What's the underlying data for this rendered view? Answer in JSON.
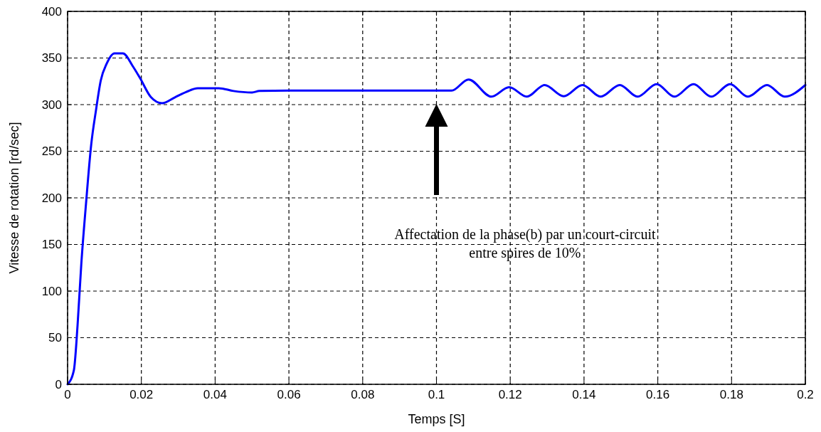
{
  "chart_data": {
    "type": "line",
    "xlabel": "Temps [S]",
    "ylabel": "Vitesse de rotation [rd/sec]",
    "xlim": [
      0,
      0.2
    ],
    "xticks": [
      0,
      0.02,
      0.04,
      0.06,
      0.08,
      0.1,
      0.12,
      0.14,
      0.16,
      0.18,
      0.2
    ],
    "ylim": [
      0,
      400
    ],
    "yticks": [
      0,
      50,
      100,
      150,
      200,
      250,
      300,
      350,
      400
    ],
    "grid": true,
    "line_style": "solid",
    "marker": "none",
    "series": [
      {
        "color": "#0000ff",
        "x": [
          0,
          0.0017,
          0.0027,
          0.0037,
          0.005,
          0.0064,
          0.0077,
          0.009,
          0.0106,
          0.0127,
          0.015,
          0.0177,
          0.0197,
          0.0226,
          0.0256,
          0.029,
          0.0322,
          0.0353,
          0.041,
          0.045,
          0.05,
          0.052,
          0.06,
          0.08,
          0.1,
          0.1041,
          0.1087,
          0.1149,
          0.1197,
          0.1245,
          0.1293,
          0.1345,
          0.1396,
          0.1445,
          0.1497,
          0.1545,
          0.1597,
          0.1645,
          0.1697,
          0.1745,
          0.1796,
          0.1844,
          0.1896,
          0.1944,
          0.2
        ],
        "values": [
          0,
          15,
          63,
          128,
          194,
          257,
          294,
          326,
          344,
          355,
          355,
          341,
          328,
          308,
          301.5,
          307.6,
          313.7,
          317.6,
          317.6,
          314.6,
          313,
          314.6,
          315,
          315,
          315,
          315,
          327,
          308.5,
          318.7,
          308.5,
          321,
          309,
          321,
          308.5,
          321,
          308.5,
          322,
          308.5,
          322,
          308.5,
          322,
          308.5,
          321,
          308.5,
          321
        ]
      }
    ],
    "annotations": [
      "Affectation de la phase(b) par un court-circuit\nentre spires de 10%"
    ]
  }
}
